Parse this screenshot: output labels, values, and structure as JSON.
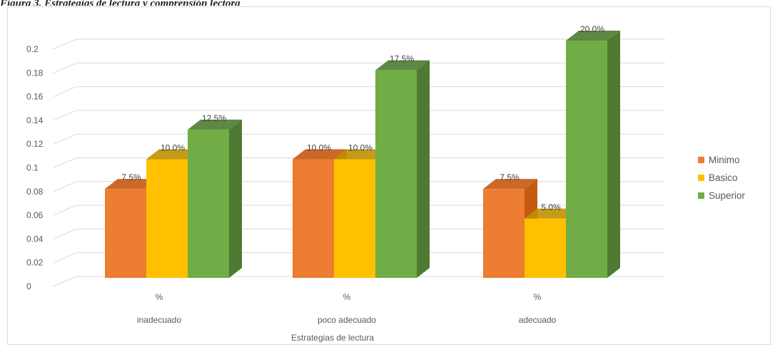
{
  "caption": "Figura 3. Estrategias de lectura y comprensión lectora",
  "chart_data": {
    "type": "bar",
    "style": "3d-clustered-column",
    "categories": [
      {
        "unit": "%",
        "name": "inadecuado"
      },
      {
        "unit": "%",
        "name": "poco adecuado"
      },
      {
        "unit": "%",
        "name": "adecuado"
      }
    ],
    "series": [
      {
        "name": "Minimo",
        "color": "#ed7d31",
        "side": "#c55a11",
        "values": [
          0.075,
          0.1,
          0.075
        ],
        "labels": [
          "7.5%",
          "10.0%",
          "7.5%"
        ]
      },
      {
        "name": "Basico",
        "color": "#ffc000",
        "side": "#bf9000",
        "values": [
          0.1,
          0.1,
          0.05
        ],
        "labels": [
          "10.0%",
          "10.0%",
          "5.0%"
        ]
      },
      {
        "name": "Superior",
        "color": "#70ad47",
        "side": "#4e7a31",
        "values": [
          0.125,
          0.175,
          0.2
        ],
        "labels": [
          "12.5%",
          "17.5%",
          "20.0%"
        ]
      }
    ],
    "yticks": [
      "0",
      "0.02",
      "0.04",
      "0.06",
      "0.08",
      "0.1",
      "0.12",
      "0.14",
      "0.16",
      "0.18",
      "0.2"
    ],
    "ylim": [
      0,
      0.2
    ],
    "xlabel": "Estrategias de lectura",
    "grid": true,
    "legend_position": "right"
  }
}
